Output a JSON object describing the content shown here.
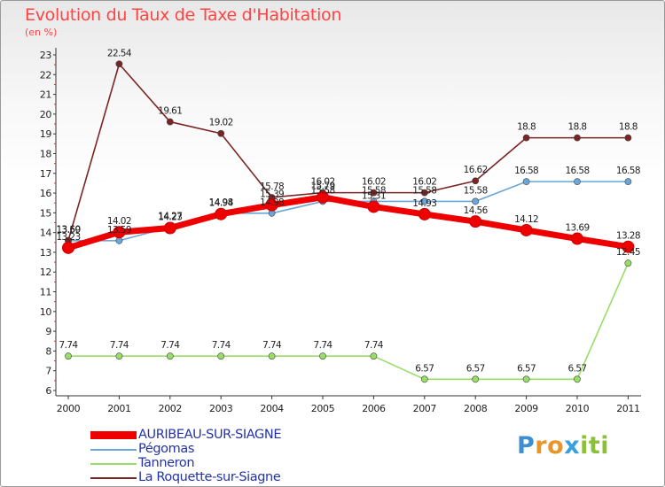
{
  "chart_data": {
    "type": "line",
    "title": "Evolution du Taux de Taxe d'Habitation",
    "unit_label": "(en %)",
    "x": [
      "2000",
      "2001",
      "2002",
      "2003",
      "2004",
      "2005",
      "2006",
      "2007",
      "2008",
      "2009",
      "2010",
      "2011"
    ],
    "y_ticks": [
      "6",
      "7",
      "8",
      "9",
      "10",
      "11",
      "12",
      "13",
      "14",
      "15",
      "16",
      "17",
      "18",
      "19",
      "20",
      "21",
      "22",
      "23"
    ],
    "ylim": [
      6,
      23
    ],
    "grid": false,
    "legend_position": "bottom-left",
    "series": [
      {
        "name": "AURIBEAU-SUR-SIAGNE",
        "color": "#ee0000",
        "values": [
          13.23,
          14.02,
          14.23,
          14.94,
          15.39,
          15.79,
          15.31,
          14.93,
          14.56,
          14.12,
          13.69,
          13.28
        ],
        "labels": [
          "13.23",
          "14.02",
          "14.23",
          "14.94",
          "15.39",
          "15.79",
          "15.31",
          "14.93",
          "14.56",
          "14.12",
          "13.69",
          "13.28"
        ]
      },
      {
        "name": "Pégomas",
        "color": "#6aa6d8",
        "values": [
          13.59,
          13.59,
          14.27,
          14.98,
          14.98,
          15.58,
          15.58,
          15.58,
          15.58,
          16.58,
          16.58,
          16.58
        ],
        "labels": [
          "13.59",
          "13.59",
          "14.27",
          "14.98",
          "14.98",
          "15.58",
          "15.58",
          "15.58",
          "15.58",
          "16.58",
          "16.58",
          "16.58"
        ]
      },
      {
        "name": "Tanneron",
        "color": "#99dd66",
        "values": [
          7.74,
          7.74,
          7.74,
          7.74,
          7.74,
          7.74,
          7.74,
          6.57,
          6.57,
          6.57,
          6.57,
          12.45
        ],
        "labels": [
          "7.74",
          "7.74",
          "7.74",
          "7.74",
          "7.74",
          "7.74",
          "7.74",
          "6.57",
          "6.57",
          "6.57",
          "6.57",
          "12.45"
        ]
      },
      {
        "name": "La Roquette-sur-Siagne",
        "color": "#7a2424",
        "values": [
          13.6,
          22.54,
          19.61,
          19.02,
          15.78,
          16.02,
          16.02,
          16.02,
          16.62,
          18.8,
          18.8,
          18.8
        ],
        "labels": [
          "13.60",
          "22.54",
          "19.61",
          "19.02",
          "15.78",
          "16.02",
          "16.02",
          "16.02",
          "16.62",
          "18.8",
          "18.8",
          "18.8"
        ]
      }
    ]
  },
  "brand": {
    "letters": [
      "P",
      "r",
      "o",
      "x",
      "i",
      "t",
      "i"
    ]
  }
}
